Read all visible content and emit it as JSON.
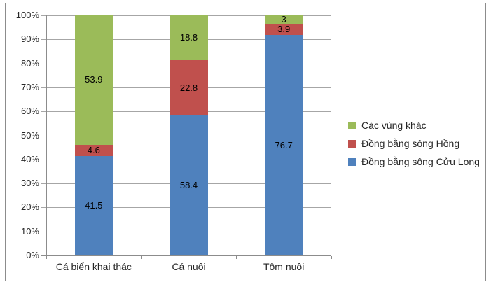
{
  "chart_data": {
    "type": "bar",
    "subtype": "stacked-100-percent-column",
    "categories": [
      "Cá biển khai thác",
      "Cá nuôi",
      "Tôm nuôi"
    ],
    "series": [
      {
        "name": "Đồng bằng sông Cửu Long",
        "color": "#4F81BD",
        "values": [
          41.5,
          58.4,
          76.7
        ],
        "labels": [
          "41.5",
          "58.4",
          "76.7"
        ]
      },
      {
        "name": "Đồng bằng sông Hồng",
        "color": "#C0504D",
        "values": [
          4.6,
          22.8,
          3.9
        ],
        "labels": [
          "4.6",
          "22.8",
          "3.9"
        ]
      },
      {
        "name": "Các vùng khác",
        "color": "#9BBB59",
        "values": [
          53.9,
          18.8,
          3
        ],
        "labels": [
          "53.9",
          "18.8",
          "3"
        ]
      }
    ],
    "y_axis": {
      "tick_labels": [
        "0%",
        "10%",
        "20%",
        "30%",
        "40%",
        "50%",
        "60%",
        "70%",
        "80%",
        "90%",
        "100%"
      ],
      "min": 0,
      "max": 100,
      "step": 10
    },
    "legend": {
      "position": "right",
      "top_to_bottom": [
        "Các vùng khác",
        "Đồng bằng sông Hồng",
        "Đồng bằng sông Cửu Long"
      ]
    },
    "grid": true,
    "normalize_each_column_to_100": true
  },
  "colors": {
    "gridline": "#A6A6A6",
    "axis": "#8C8C8C",
    "frame": "#8C8C8C",
    "background": "#FFFFFF",
    "label_text": "#000000"
  }
}
